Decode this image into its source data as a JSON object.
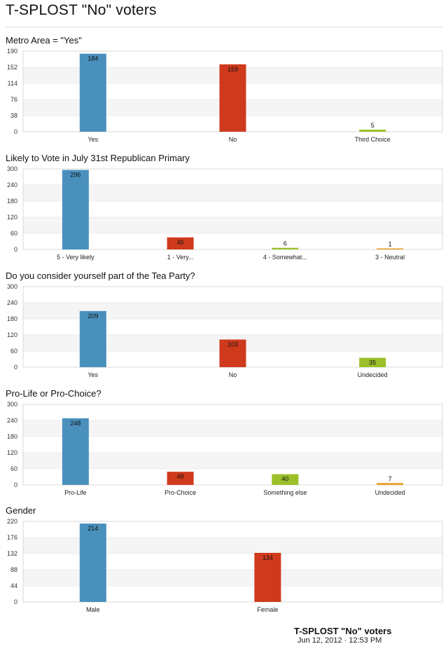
{
  "page": {
    "title": "T-SPLOST \"No\" voters",
    "footer_title": "T-SPLOST \"No\" voters",
    "footer_date": "Jun 12, 2012 · 12:53 PM"
  },
  "colors": {
    "blue": "#4a90bd",
    "red": "#cf3a1c",
    "green": "#9bc02a",
    "orange": "#ea9d1e",
    "band": "#f5f5f5",
    "frame": "#d9d9d9"
  },
  "chart_data": [
    {
      "type": "bar",
      "title": "Metro Area = \"Yes\"",
      "categories": [
        "Yes",
        "No",
        "Third Choice"
      ],
      "values": [
        184,
        159,
        5
      ],
      "colors": [
        "#4a90bd",
        "#cf3a1c",
        "#9bc02a"
      ],
      "ylim": [
        0,
        190
      ],
      "yticks": [
        0,
        38,
        76,
        114,
        152,
        190
      ],
      "grid": true,
      "legend": "none"
    },
    {
      "type": "bar",
      "title": "Likely to Vote in July 31st Republican Primary",
      "categories": [
        "5 - Very likely",
        "1 - Very...",
        "4 - Somewhat...",
        "3 - Neutral"
      ],
      "values": [
        296,
        45,
        6,
        1
      ],
      "colors": [
        "#4a90bd",
        "#cf3a1c",
        "#9bc02a",
        "#ea9d1e"
      ],
      "ylim": [
        0,
        300
      ],
      "yticks": [
        0,
        60,
        120,
        180,
        240,
        300
      ],
      "grid": true,
      "legend": "none"
    },
    {
      "type": "bar",
      "title": "Do you consider yourself part of the Tea Party?",
      "categories": [
        "Yes",
        "No",
        "Undecided"
      ],
      "values": [
        209,
        103,
        35
      ],
      "colors": [
        "#4a90bd",
        "#cf3a1c",
        "#9bc02a"
      ],
      "ylim": [
        0,
        300
      ],
      "yticks": [
        0,
        60,
        120,
        180,
        240,
        300
      ],
      "grid": true,
      "legend": "none"
    },
    {
      "type": "bar",
      "title": "Pro-Life or Pro-Choice?",
      "categories": [
        "Pro-Life",
        "Pro-Choice",
        "Something else",
        "Undecided"
      ],
      "values": [
        248,
        49,
        40,
        7
      ],
      "colors": [
        "#4a90bd",
        "#cf3a1c",
        "#9bc02a",
        "#ea9d1e"
      ],
      "ylim": [
        0,
        300
      ],
      "yticks": [
        0,
        60,
        120,
        180,
        240,
        300
      ],
      "grid": true,
      "legend": "none"
    },
    {
      "type": "bar",
      "title": "Gender",
      "categories": [
        "Male",
        "Female"
      ],
      "values": [
        214,
        134
      ],
      "colors": [
        "#4a90bd",
        "#cf3a1c"
      ],
      "ylim": [
        0,
        220
      ],
      "yticks": [
        0,
        44,
        88,
        132,
        176,
        220
      ],
      "grid": true,
      "legend": "none"
    }
  ]
}
